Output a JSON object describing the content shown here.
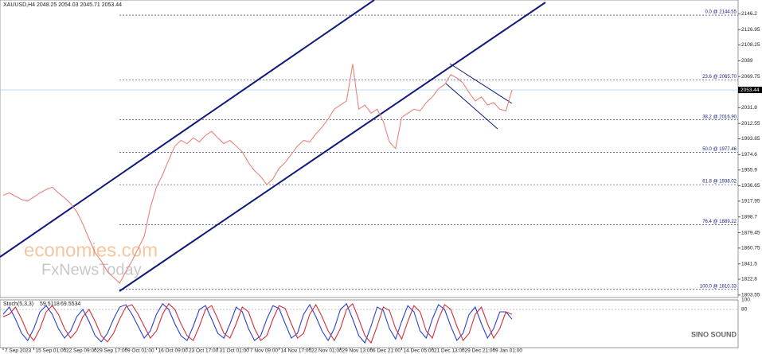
{
  "chart_data": [
    {
      "type": "line",
      "title": "XAUUSD,H4  2048.25 2054.03 2045.71 2053.44",
      "categories": [
        "7 Sep 2023",
        null,
        null,
        null,
        null,
        "15 Sep 01:00",
        null,
        null,
        null,
        null,
        "22 Sep 09:00",
        null,
        null,
        null,
        null,
        "29 Sep 17:00",
        null,
        null,
        null,
        null,
        "9 Oct 01:00",
        null,
        null,
        null,
        null,
        "16 Oct 09:00",
        null,
        null,
        null,
        null,
        "23 Oct 17:00",
        null,
        null,
        null,
        null,
        "31 Oct 01:00",
        null,
        null,
        null,
        null,
        "7 Nov 09:00",
        null,
        null,
        null,
        null,
        "14 Nov 17:00",
        null,
        null,
        null,
        null,
        "22 Nov 01:00",
        null,
        null,
        null,
        null,
        "29 Nov 13:00",
        null,
        null,
        null,
        null,
        "6 Dec 21:00",
        null,
        null,
        null,
        null,
        "14 Dec 05:00",
        null,
        null,
        null,
        null,
        "21 Dec 13:00",
        null,
        null,
        null,
        null,
        "29 Dec 21:00",
        null,
        null,
        null,
        null,
        "9 Jan 01:00",
        null,
        null,
        null
      ],
      "series": [
        {
          "name": "XAUUSD",
          "color": "#e8837a",
          "values": [
            1925,
            1928,
            1924,
            1920,
            1918,
            1923,
            1928,
            1932,
            1935,
            1928,
            1922,
            1915,
            1905,
            1890,
            1872,
            1855,
            1845,
            1832,
            1825,
            1818,
            1832,
            1845,
            1860,
            1875,
            1910,
            1935,
            1950,
            1968,
            1985,
            1992,
            1988,
            1995,
            1990,
            1998,
            2003,
            1995,
            1988,
            1992,
            1985,
            1978,
            1965,
            1955,
            1948,
            1938,
            1945,
            1958,
            1965,
            1975,
            1985,
            1992,
            1990,
            2000,
            2008,
            2018,
            2030,
            2035,
            2040,
            2085,
            2030,
            2035,
            2025,
            2030,
            2015,
            1990,
            1982,
            2020,
            2025,
            2030,
            2028,
            2038,
            2045,
            2055,
            2060,
            2072,
            2068,
            2062,
            2050,
            2040,
            2045,
            2035,
            2038,
            2030,
            2028,
            2053.44
          ]
        }
      ],
      "last_price": 2053.44,
      "ylim": [
        1800.5,
        2163
      ],
      "yticks": [
        2146.2,
        2126.95,
        2108.25,
        2089.0,
        2069.75,
        2031.8,
        2012.55,
        1993.85,
        1974.6,
        1955.9,
        1936.65,
        1917.95,
        1898.7,
        1879.45,
        1860.75,
        1841.5,
        1822.8,
        1803.55
      ],
      "xlim": [
        -0.52,
        119.87
      ],
      "fibonacci": [
        {
          "label": "0.0 @ 2144.55",
          "price": 2144.55
        },
        {
          "label": "23.6 @ 2065.70",
          "price": 2065.7
        },
        {
          "label": "38.2 @ 2016.90",
          "price": 2016.9
        },
        {
          "label": "50.0 @ 1977.46",
          "price": 1977.46
        },
        {
          "label": "61.8 @ 1938.02",
          "price": 1938.02
        },
        {
          "label": "76.4 @ 1889.22",
          "price": 1889.22
        },
        {
          "label": "100.0 @ 1810.33",
          "price": 1810.33
        }
      ],
      "watermarks": [
        "economies.com",
        "FxNewsToday",
        "SINO SOUND"
      ]
    },
    {
      "type": "line",
      "title": "Stoch(5,3,3)",
      "series": [
        {
          "name": "Main",
          "color": "#2b3fd0",
          "values": [
            70,
            85,
            60,
            30,
            15,
            40,
            75,
            88,
            70,
            40,
            20,
            35,
            65,
            80,
            55,
            25,
            12,
            30,
            60,
            85,
            90,
            70,
            45,
            20,
            35,
            70,
            92,
            80,
            50,
            25,
            15,
            45,
            80,
            88,
            60,
            30,
            20,
            50,
            85,
            75,
            40,
            15,
            25,
            60,
            88,
            82,
            50,
            20,
            30,
            70,
            90,
            65,
            35,
            15,
            40,
            80,
            92,
            60,
            25,
            10,
            45,
            85,
            78,
            40,
            18,
            55,
            88,
            75,
            35,
            20,
            60,
            90,
            80,
            45,
            15,
            30,
            70,
            85,
            50,
            20,
            40,
            75,
            75,
            59.5118
          ]
        },
        {
          "name": "Signal",
          "color": "#d0303a",
          "values": [
            65,
            70,
            85,
            60,
            30,
            15,
            40,
            75,
            88,
            70,
            40,
            20,
            35,
            65,
            80,
            55,
            25,
            12,
            30,
            60,
            85,
            90,
            70,
            45,
            20,
            35,
            70,
            92,
            80,
            50,
            25,
            15,
            45,
            80,
            88,
            60,
            30,
            20,
            50,
            85,
            75,
            40,
            15,
            25,
            60,
            88,
            82,
            50,
            20,
            30,
            70,
            90,
            65,
            35,
            15,
            40,
            80,
            92,
            60,
            25,
            10,
            45,
            85,
            78,
            40,
            18,
            55,
            88,
            75,
            35,
            20,
            60,
            90,
            80,
            45,
            15,
            30,
            70,
            85,
            50,
            20,
            40,
            75,
            69.5534
          ]
        }
      ],
      "ylim": [
        0,
        100
      ],
      "yticks": [
        80,
        100
      ]
    }
  ]
}
